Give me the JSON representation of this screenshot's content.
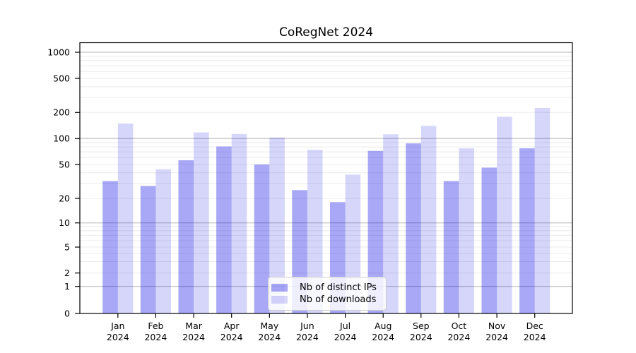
{
  "chart_data": {
    "type": "bar",
    "title": "CoRegNet 2024",
    "xlabel": "",
    "ylabel": "",
    "yscale": "symlog",
    "grid": true,
    "legend_position": "lower center",
    "categories": [
      "Jan",
      "Feb",
      "Mar",
      "Apr",
      "May",
      "Jun",
      "Jul",
      "Aug",
      "Sep",
      "Oct",
      "Nov",
      "Dec"
    ],
    "category_year": "2024",
    "yticks": [
      0,
      1,
      2,
      5,
      10,
      20,
      50,
      100,
      200,
      500,
      1000
    ],
    "ylim": [
      0,
      1370
    ],
    "series": [
      {
        "name": "Nb of distinct IPs",
        "color": "rgba(0,0,230,0.34)",
        "values": [
          32,
          28,
          56,
          81,
          50,
          25,
          18,
          72,
          88,
          32,
          46,
          77
        ]
      },
      {
        "name": "Nb of downloads",
        "color": "rgba(0,0,230,0.16)",
        "values": [
          149,
          44,
          118,
          113,
          103,
          74,
          38,
          112,
          140,
          77,
          178,
          226
        ]
      }
    ],
    "grid_major_color": "#b4b4b4",
    "grid_minor_color": "#ebebeb",
    "axis_color": "#000000",
    "legend_border_color": "#cccccc"
  }
}
